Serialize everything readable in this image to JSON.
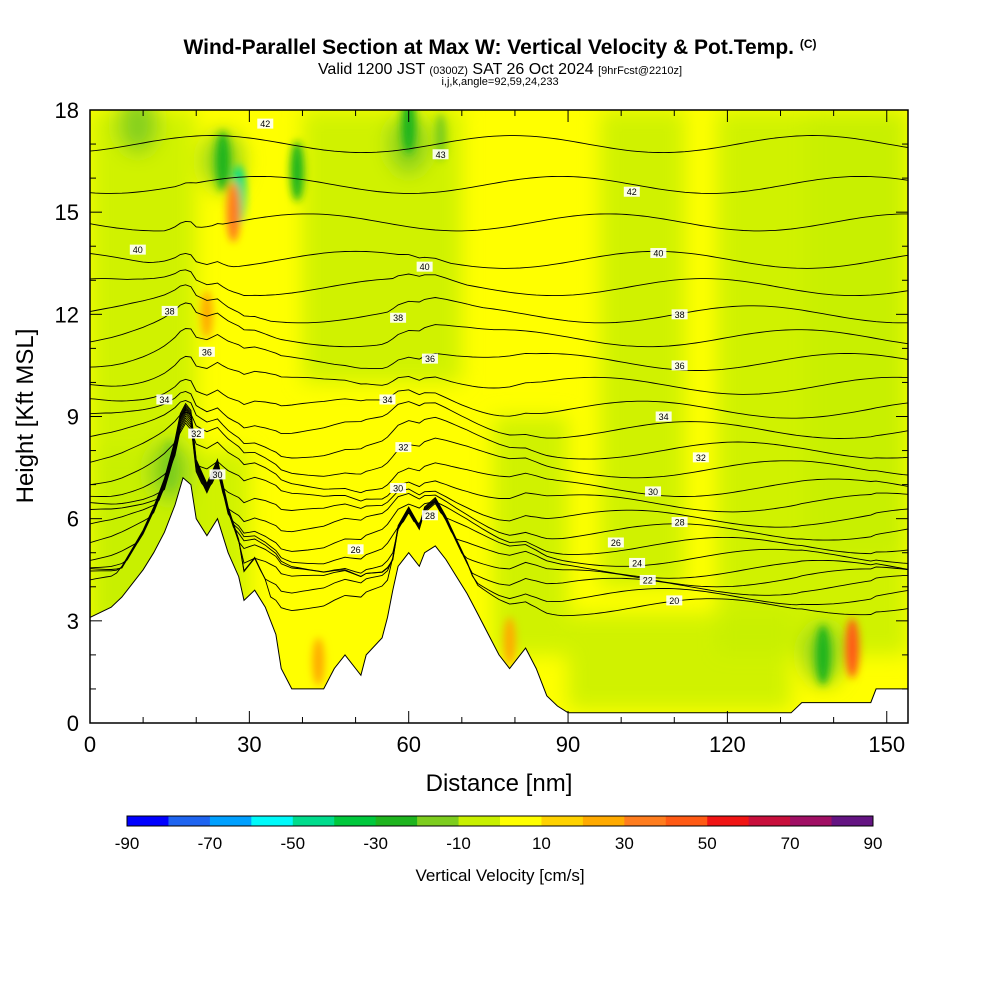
{
  "title": "Wind-Parallel Section at Max W: Vertical Velocity & Pot.Temp.",
  "title_mark": "(C)",
  "subtitle": {
    "prefix": "Valid 1200 JST",
    "utc": "(0300Z)",
    "date": "SAT 26 Oct 2024",
    "forecast": "[9hrFcst@2210z]"
  },
  "subsubtitle": "i,j,k,angle=92,59,24,233",
  "chart_data": {
    "type": "heatmap",
    "xlabel": "Distance [nm]",
    "ylabel": "Height [Kft MSL]",
    "xlim": [
      0,
      154
    ],
    "ylim": [
      0,
      18
    ],
    "xticks": [
      0,
      30,
      60,
      90,
      120,
      150
    ],
    "yticks": [
      0,
      3,
      6,
      9,
      12,
      15,
      18
    ],
    "colorbar": {
      "label": "Vertical Velocity [cm/s]",
      "ticks": [
        -90,
        -70,
        -50,
        -30,
        -10,
        10,
        30,
        50,
        70,
        90
      ],
      "bounds": [
        -90,
        -80,
        -70,
        -60,
        -50,
        -40,
        -30,
        -20,
        -10,
        0,
        10,
        20,
        30,
        40,
        50,
        60,
        70,
        80,
        90
      ],
      "colors": [
        "#0000ff",
        "#1e64f0",
        "#00a0ff",
        "#00fafa",
        "#00dc8c",
        "#00c83c",
        "#1eb41e",
        "#7dcd1e",
        "#c8f000",
        "#ffff00",
        "#ffd200",
        "#ffaa00",
        "#ff7d1e",
        "#ff5a14",
        "#f01414",
        "#c80f3c",
        "#a00f64",
        "#641482"
      ]
    },
    "terrain": [
      [
        0,
        3.1
      ],
      [
        4,
        3.4
      ],
      [
        6,
        3.7
      ],
      [
        8,
        4.1
      ],
      [
        10,
        4.5
      ],
      [
        12,
        5.0
      ],
      [
        14,
        5.6
      ],
      [
        16,
        6.4
      ],
      [
        17.5,
        7.2
      ],
      [
        19,
        7.0
      ],
      [
        20,
        6.0
      ],
      [
        22,
        5.5
      ],
      [
        24,
        6.0
      ],
      [
        26,
        5.0
      ],
      [
        28,
        4.3
      ],
      [
        29,
        3.6
      ],
      [
        31,
        3.9
      ],
      [
        33,
        3.4
      ],
      [
        35,
        2.6
      ],
      [
        36,
        1.6
      ],
      [
        38,
        1.0
      ],
      [
        44,
        1.0
      ],
      [
        46,
        1.6
      ],
      [
        48,
        2.0
      ],
      [
        50,
        1.6
      ],
      [
        51,
        1.4
      ],
      [
        52,
        2.0
      ],
      [
        55,
        2.5
      ],
      [
        56,
        3.1
      ],
      [
        57,
        3.9
      ],
      [
        58,
        4.6
      ],
      [
        60,
        5.0
      ],
      [
        62,
        4.6
      ],
      [
        63,
        5.0
      ],
      [
        65,
        5.2
      ],
      [
        67,
        4.8
      ],
      [
        69,
        4.3
      ],
      [
        71,
        3.8
      ],
      [
        73,
        3.2
      ],
      [
        75,
        2.6
      ],
      [
        77,
        2.0
      ],
      [
        79,
        1.6
      ],
      [
        81,
        2.0
      ],
      [
        82,
        2.2
      ],
      [
        84,
        1.6
      ],
      [
        86,
        0.8
      ],
      [
        88,
        0.5
      ],
      [
        90,
        0.3
      ],
      [
        132,
        0.3
      ],
      [
        134,
        0.6
      ],
      [
        147,
        0.6
      ],
      [
        148,
        1.0
      ],
      [
        154,
        1.0
      ]
    ],
    "theta_levels": [
      {
        "value": 20,
        "label_x": 110,
        "label_y": 3.6
      },
      {
        "value": 22,
        "label_x": 105,
        "label_y": 4.2
      },
      {
        "value": 24,
        "label_x": 103,
        "label_y": 4.7
      },
      {
        "value": 26,
        "label_x": 50,
        "label_y": 5.1
      },
      {
        "value": 26,
        "label_x": 99,
        "label_y": 5.3
      },
      {
        "value": 28,
        "label_x": 64,
        "label_y": 6.1
      },
      {
        "value": 28,
        "label_x": 111,
        "label_y": 5.9
      },
      {
        "value": 30,
        "label_x": 24,
        "label_y": 7.3
      },
      {
        "value": 30,
        "label_x": 58,
        "label_y": 6.9
      },
      {
        "value": 30,
        "label_x": 106,
        "label_y": 6.8
      },
      {
        "value": 32,
        "label_x": 20,
        "label_y": 8.5
      },
      {
        "value": 32,
        "label_x": 59,
        "label_y": 8.1
      },
      {
        "value": 32,
        "label_x": 115,
        "label_y": 7.8
      },
      {
        "value": 34,
        "label_x": 14,
        "label_y": 9.5
      },
      {
        "value": 34,
        "label_x": 56,
        "label_y": 9.5
      },
      {
        "value": 34,
        "label_x": 108,
        "label_y": 9.0
      },
      {
        "value": 36,
        "label_x": 22,
        "label_y": 10.9
      },
      {
        "value": 36,
        "label_x": 64,
        "label_y": 10.7
      },
      {
        "value": 36,
        "label_x": 111,
        "label_y": 10.5
      },
      {
        "value": 38,
        "label_x": 15,
        "label_y": 12.1
      },
      {
        "value": 38,
        "label_x": 58,
        "label_y": 11.9
      },
      {
        "value": 38,
        "label_x": 111,
        "label_y": 12.0
      },
      {
        "value": 40,
        "label_x": 9,
        "label_y": 13.9
      },
      {
        "value": 40,
        "label_x": 63,
        "label_y": 13.4
      },
      {
        "value": 40,
        "label_x": 107,
        "label_y": 13.8
      },
      {
        "value": 42,
        "label_x": 33,
        "label_y": 17.6
      },
      {
        "value": 42,
        "label_x": 102,
        "label_y": 15.6
      },
      {
        "value": 43,
        "label_x": 66,
        "label_y": 16.7
      }
    ],
    "updraft_cells": [
      {
        "x": 143.5,
        "y": 2.2,
        "value": 40
      },
      {
        "x": 27,
        "y": 15.0,
        "value": 30
      },
      {
        "x": 22,
        "y": 12.0,
        "value": 20
      },
      {
        "x": 43,
        "y": 1.8,
        "value": 20
      },
      {
        "x": 79,
        "y": 2.4,
        "value": 20
      }
    ],
    "downdraft_cells": [
      {
        "x": 28,
        "y": 15.5,
        "value": -50
      },
      {
        "x": 25,
        "y": 16.5,
        "value": -30
      },
      {
        "x": 39,
        "y": 16.2,
        "value": -30
      },
      {
        "x": 138,
        "y": 2.0,
        "value": -30
      },
      {
        "x": 15,
        "y": 7.6,
        "value": -20
      },
      {
        "x": 60,
        "y": 17.6,
        "value": -30
      },
      {
        "x": 66,
        "y": 17.2,
        "value": -20
      }
    ]
  }
}
